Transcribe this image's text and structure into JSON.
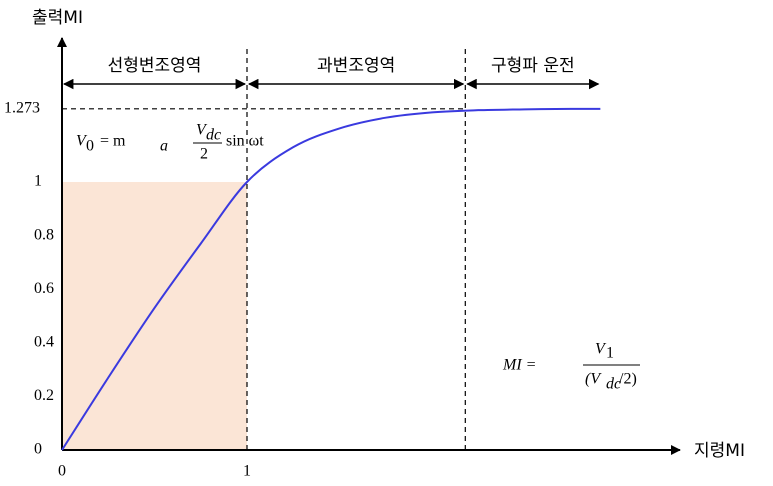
{
  "chart_data": {
    "type": "line",
    "y_label": "출력MI",
    "x_label": "지령MI",
    "x": [
      0,
      0.25,
      0.5,
      0.75,
      1,
      1.25,
      1.5,
      1.75,
      2,
      2.25,
      2.5,
      2.75,
      2.91
    ],
    "series": [
      {
        "color": "#3a3adf",
        "values": [
          0,
          0.27,
          0.53,
          0.77,
          1,
          1.13,
          1.2,
          1.24,
          1.26,
          1.268,
          1.271,
          1.273,
          1.273
        ]
      }
    ],
    "xlim": [
      0,
      3.34
    ],
    "ylim": [
      0,
      1.5
    ],
    "xticks": [
      0,
      1
    ],
    "yticks": [
      0,
      0.2,
      0.4,
      0.6,
      0.8,
      1,
      1.273
    ],
    "region_boundaries": [
      1,
      2.18
    ],
    "regions": [
      "선형변조영역",
      "과변조영역",
      "구형파 운전"
    ],
    "shade_color": "#fbe5d6",
    "formula_1": [
      "V",
      "0",
      "= m",
      "a",
      "V",
      "dc",
      "2",
      "sin ωt"
    ],
    "formula_2": [
      "MI =",
      "V",
      "1",
      "(V",
      "dc",
      "/2)"
    ]
  }
}
